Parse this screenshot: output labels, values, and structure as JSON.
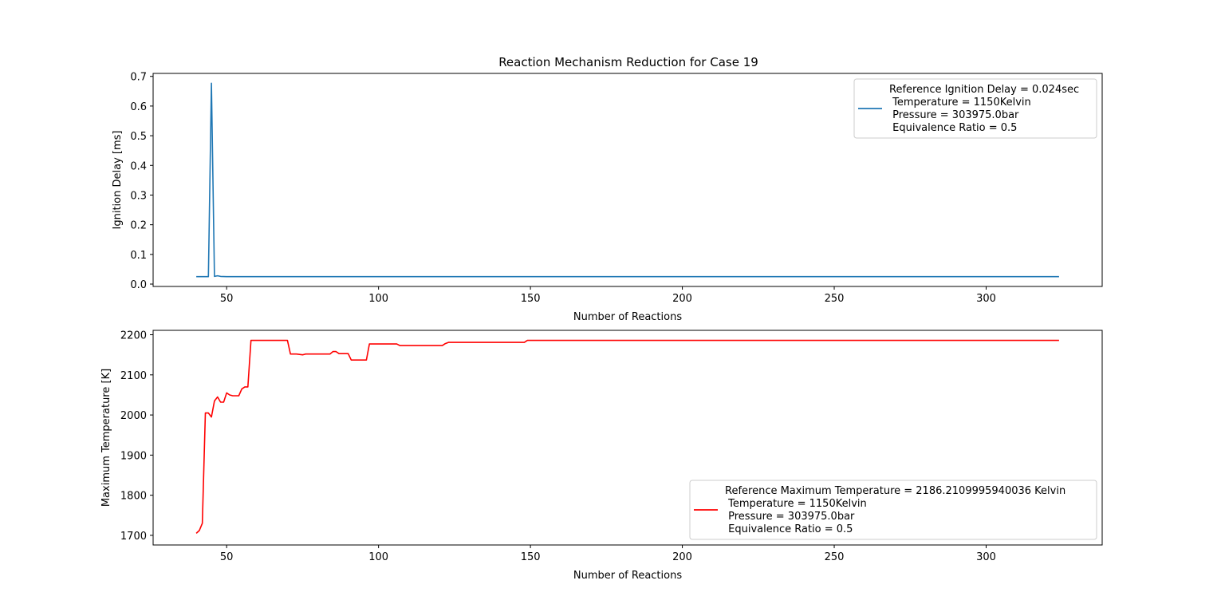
{
  "figure": {
    "title": "Reaction Mechanism Reduction for Case 19"
  },
  "chart_data": [
    {
      "type": "line",
      "title": "Reaction Mechanism Reduction for Case 19",
      "xlabel": "Number of Reactions",
      "ylabel": "Ignition Delay [ms]",
      "xlim": [
        25.8,
        338.2
      ],
      "ylim": [
        -0.008,
        0.71
      ],
      "xticks": [
        50,
        100,
        150,
        200,
        250,
        300
      ],
      "yticks": [
        0.0,
        0.1,
        0.2,
        0.3,
        0.4,
        0.5,
        0.6,
        0.7
      ],
      "ytick_labels": [
        "0.0",
        "0.1",
        "0.2",
        "0.3",
        "0.4",
        "0.5",
        "0.6",
        "0.7"
      ],
      "grid": false,
      "legend_position": "top-right",
      "series": [
        {
          "color": "#1f77b4",
          "legend_lines": [
            "Reference Ignition Delay = 0.024sec",
            " Temperature = 1150Kelvin",
            " Pressure = 303975.0bar",
            " Equivalence Ratio = 0.5"
          ],
          "x": [
            40,
            44,
            45,
            46,
            47,
            48,
            50,
            52,
            60,
            100,
            150,
            200,
            250,
            300,
            324
          ],
          "y": [
            0.025,
            0.025,
            0.677,
            0.026,
            0.028,
            0.026,
            0.025,
            0.025,
            0.025,
            0.025,
            0.025,
            0.025,
            0.025,
            0.025,
            0.025
          ]
        }
      ]
    },
    {
      "type": "line",
      "xlabel": "Number of Reactions",
      "ylabel": "Maximum Temperature [K]",
      "xlim": [
        25.8,
        338.2
      ],
      "ylim": [
        1676,
        2211
      ],
      "xticks": [
        50,
        100,
        150,
        200,
        250,
        300
      ],
      "yticks": [
        1700,
        1800,
        1900,
        2000,
        2100,
        2200
      ],
      "ytick_labels": [
        "1700",
        "1800",
        "1900",
        "2000",
        "2100",
        "2200"
      ],
      "grid": false,
      "legend_position": "bottom-right",
      "series": [
        {
          "color": "#ff0000",
          "legend_lines": [
            "Reference Maximum Temperature = 2186.2109995940036 Kelvin",
            " Temperature = 1150Kelvin",
            " Pressure = 303975.0bar",
            " Equivalence Ratio = 0.5"
          ],
          "x": [
            40,
            41,
            42,
            43,
            44,
            45,
            46,
            47,
            48,
            49,
            50,
            51,
            52,
            53,
            54,
            55,
            56,
            57,
            58,
            60,
            70,
            71,
            73,
            75,
            76,
            80,
            84,
            85,
            86,
            87,
            90,
            91,
            92,
            96,
            97,
            100,
            106,
            107,
            110,
            115,
            121,
            122,
            123,
            130,
            140,
            148,
            149,
            150,
            200,
            250,
            300,
            324
          ],
          "y": [
            1705,
            1712,
            1730,
            2005,
            2005,
            1995,
            2035,
            2045,
            2032,
            2032,
            2055,
            2050,
            2048,
            2048,
            2048,
            2065,
            2070,
            2070,
            2186,
            2186,
            2186,
            2152,
            2152,
            2150,
            2152,
            2152,
            2152,
            2158,
            2158,
            2153,
            2153,
            2137,
            2137,
            2137,
            2177,
            2177,
            2177,
            2173,
            2173,
            2173,
            2173,
            2178,
            2181,
            2181,
            2181,
            2181,
            2186,
            2186,
            2186,
            2186,
            2186,
            2186
          ]
        }
      ]
    }
  ]
}
